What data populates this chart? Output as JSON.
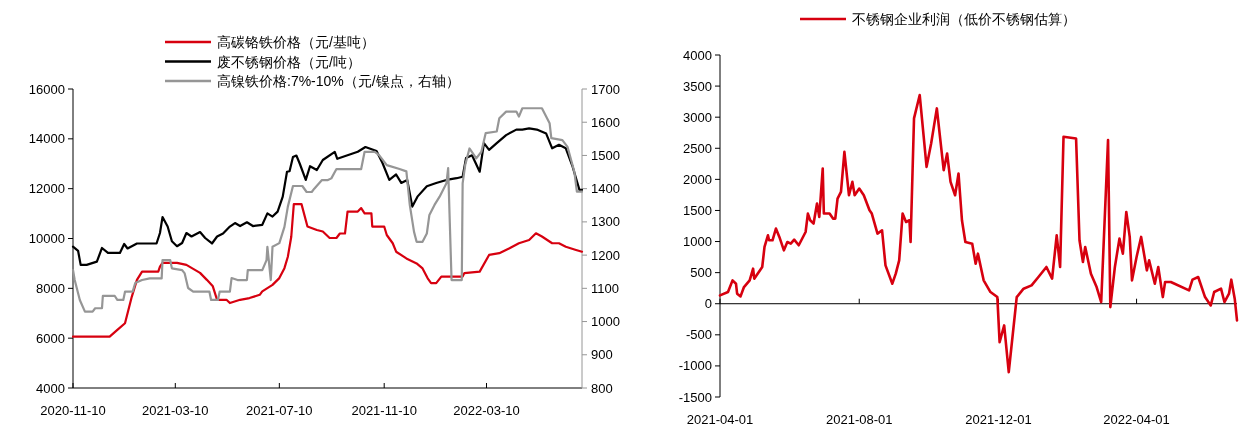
{
  "chart_data": [
    {
      "type": "line",
      "legend": "top",
      "grid": false,
      "marker": "none",
      "line_style": "solid",
      "xlim": [
        "2020-11-10",
        "2022-06-30"
      ],
      "xticks": [
        "2020-11-10",
        "2021-03-10",
        "2021-07-10",
        "2021-11-10",
        "2022-03-10"
      ],
      "ylim": [
        4000,
        16000
      ],
      "yticks": [
        4000,
        6000,
        8000,
        10000,
        12000,
        14000,
        16000
      ],
      "y2lim": [
        800,
        1700
      ],
      "y2ticks": [
        800,
        900,
        1000,
        1100,
        1200,
        1300,
        1400,
        1500,
        1600,
        1700
      ],
      "series": [
        {
          "name": "高碳铬铁价格（元/基吨）",
          "color": "#d7000f",
          "x": [
            "2020-11-10",
            "2020-12-23",
            "2021-01-01",
            "2021-01-10",
            "2021-01-18",
            "2021-01-24",
            "2021-01-30",
            "2021-02-18",
            "2021-02-20",
            "2021-02-23",
            "2021-03-12",
            "2021-03-23",
            "2021-03-31",
            "2021-04-08",
            "2021-04-16",
            "2021-04-23",
            "2021-04-28",
            "2021-05-09",
            "2021-05-13",
            "2021-05-25",
            "2021-06-05",
            "2021-06-17",
            "2021-06-20",
            "2021-07-02",
            "2021-07-10",
            "2021-07-16",
            "2021-07-20",
            "2021-07-24",
            "2021-07-27",
            "2021-08-05",
            "2021-08-12",
            "2021-08-23",
            "2021-08-30",
            "2021-09-07",
            "2021-09-15",
            "2021-09-19",
            "2021-09-25",
            "2021-09-28",
            "2021-10-10",
            "2021-10-14",
            "2021-10-18",
            "2021-10-26",
            "2021-10-27",
            "2021-11-10",
            "2021-11-13",
            "2021-11-20",
            "2021-11-24",
            "2021-12-06",
            "2021-12-18",
            "2021-12-25",
            "2021-12-31",
            "2022-01-04",
            "2022-01-10",
            "2022-01-16",
            "2022-02-10",
            "2022-02-12",
            "2022-03-02",
            "2022-03-13",
            "2022-03-25",
            "2022-04-06",
            "2022-04-17",
            "2022-04-29",
            "2022-05-07",
            "2022-05-14",
            "2022-05-26",
            "2022-06-03",
            "2022-06-11",
            "2022-06-23",
            "2022-06-30"
          ],
          "values": [
            6060,
            6060,
            6330,
            6600,
            7670,
            8340,
            8670,
            8670,
            8870,
            9020,
            9020,
            8940,
            8780,
            8620,
            8340,
            8080,
            7540,
            7540,
            7410,
            7540,
            7610,
            7740,
            7880,
            8140,
            8410,
            8810,
            9270,
            10070,
            11380,
            11380,
            10480,
            10340,
            10280,
            10020,
            10020,
            10200,
            10200,
            11080,
            11080,
            11220,
            11010,
            11010,
            10480,
            10480,
            10140,
            9810,
            9470,
            9200,
            9000,
            8800,
            8400,
            8210,
            8210,
            8470,
            8470,
            8610,
            8670,
            9340,
            9410,
            9610,
            9810,
            9940,
            10210,
            10080,
            9810,
            9810,
            9670,
            9540,
            9470
          ]
        },
        {
          "name": "废不锈钢价格（元/吨）",
          "color": "#000000",
          "x": [
            "2020-11-10",
            "2020-11-16",
            "2020-11-19",
            "2020-11-26",
            "2020-12-08",
            "2020-12-14",
            "2020-12-21",
            "2021-01-04",
            "2021-01-09",
            "2021-01-13",
            "2021-01-24",
            "2021-02-16",
            "2021-02-20",
            "2021-02-23",
            "2021-03-01",
            "2021-03-06",
            "2021-03-12",
            "2021-03-18",
            "2021-03-23",
            "2021-03-29",
            "2021-04-08",
            "2021-04-14",
            "2021-04-22",
            "2021-04-28",
            "2021-05-05",
            "2021-05-13",
            "2021-05-19",
            "2021-05-25",
            "2021-06-02",
            "2021-06-09",
            "2021-06-20",
            "2021-06-26",
            "2021-07-02",
            "2021-07-08",
            "2021-07-14",
            "2021-07-19",
            "2021-07-22",
            "2021-07-26",
            "2021-07-30",
            "2021-08-03",
            "2021-08-10",
            "2021-08-15",
            "2021-08-23",
            "2021-08-30",
            "2021-09-13",
            "2021-09-16",
            "2021-09-28",
            "2021-10-10",
            "2021-10-19",
            "2021-11-01",
            "2021-11-08",
            "2021-11-16",
            "2021-11-24",
            "2021-11-30",
            "2021-12-07",
            "2021-12-13",
            "2021-12-19",
            "2021-12-30",
            "2022-01-10",
            "2022-01-22",
            "2022-02-03",
            "2022-02-10",
            "2022-02-14",
            "2022-02-21",
            "2022-03-02",
            "2022-03-07",
            "2022-03-13",
            "2022-03-22",
            "2022-04-02",
            "2022-04-14",
            "2022-04-21",
            "2022-04-29",
            "2022-05-08",
            "2022-05-19",
            "2022-05-26",
            "2022-06-03",
            "2022-06-11",
            "2022-06-19",
            "2022-06-27",
            "2022-06-30"
          ],
          "values": [
            9670,
            9500,
            8940,
            8940,
            9070,
            9620,
            9420,
            9420,
            9780,
            9600,
            9800,
            9800,
            10220,
            10860,
            10480,
            9890,
            9690,
            9820,
            10220,
            10080,
            10260,
            10020,
            9800,
            10080,
            10200,
            10480,
            10620,
            10500,
            10650,
            10500,
            10550,
            11010,
            10880,
            11080,
            11680,
            12680,
            12700,
            13270,
            13330,
            13000,
            12350,
            12900,
            12750,
            13150,
            13480,
            13200,
            13340,
            13480,
            13670,
            13510,
            13030,
            12350,
            12570,
            12230,
            12350,
            11280,
            11680,
            12100,
            12230,
            12350,
            12420,
            12480,
            13230,
            13340,
            12680,
            13830,
            13560,
            13830,
            14150,
            14370,
            14370,
            14420,
            14370,
            14210,
            13620,
            13760,
            13620,
            12880,
            11950,
            11950
          ]
        },
        {
          "name": "高镍铁价格:7%-10%（元/镍点，右轴）",
          "color": "#969696",
          "axis": "y2",
          "x": [
            "2020-11-10",
            "2020-11-12",
            "2020-11-18",
            "2020-11-24",
            "2020-12-03",
            "2020-12-06",
            "2020-12-14",
            "2020-12-15",
            "2020-12-29",
            "2021-01-01",
            "2021-01-08",
            "2021-01-10",
            "2021-01-19",
            "2021-01-22",
            "2021-01-30",
            "2021-02-08",
            "2021-02-22",
            "2021-02-23",
            "2021-03-04",
            "2021-03-06",
            "2021-03-18",
            "2021-03-21",
            "2021-03-25",
            "2021-03-31",
            "2021-04-19",
            "2021-04-21",
            "2021-04-29",
            "2021-05-01",
            "2021-05-13",
            "2021-05-15",
            "2021-05-22",
            "2021-06-02",
            "2021-06-03",
            "2021-06-20",
            "2021-06-25",
            "2021-06-26",
            "2021-06-30",
            "2021-07-02",
            "2021-07-10",
            "2021-07-16",
            "2021-07-20",
            "2021-07-26",
            "2021-08-06",
            "2021-08-11",
            "2021-08-17",
            "2021-08-20",
            "2021-08-29",
            "2021-09-05",
            "2021-09-09",
            "2021-09-15",
            "2021-10-14",
            "2021-10-18",
            "2021-10-30",
            "2021-11-04",
            "2021-11-13",
            "2021-11-28",
            "2021-12-06",
            "2021-12-10",
            "2021-12-15",
            "2021-12-18",
            "2021-12-25",
            "2021-12-30",
            "2022-01-02",
            "2022-01-08",
            "2022-01-14",
            "2022-01-22",
            "2022-01-24",
            "2022-01-28",
            "2022-02-09",
            "2022-02-10",
            "2022-02-13",
            "2022-02-18",
            "2022-02-26",
            "2022-03-04",
            "2022-03-09",
            "2022-03-22",
            "2022-03-25",
            "2022-04-02",
            "2022-04-14",
            "2022-04-17",
            "2022-04-21",
            "2022-05-14",
            "2022-05-23",
            "2022-05-25",
            "2022-06-07",
            "2022-06-13",
            "2022-06-21",
            "2022-06-24",
            "2022-06-30"
          ],
          "values": [
            1155,
            1125,
            1065,
            1030,
            1030,
            1040,
            1040,
            1077,
            1077,
            1065,
            1065,
            1090,
            1090,
            1116,
            1125,
            1130,
            1130,
            1185,
            1185,
            1160,
            1155,
            1145,
            1101,
            1090,
            1090,
            1065,
            1065,
            1090,
            1090,
            1131,
            1125,
            1125,
            1155,
            1155,
            1185,
            1225,
            1125,
            1225,
            1236,
            1285,
            1346,
            1408,
            1408,
            1390,
            1390,
            1400,
            1426,
            1426,
            1431,
            1459,
            1459,
            1511,
            1511,
            1501,
            1471,
            1459,
            1452,
            1351,
            1270,
            1240,
            1240,
            1265,
            1321,
            1351,
            1376,
            1416,
            1462,
            1125,
            1125,
            1416,
            1471,
            1521,
            1491,
            1511,
            1567,
            1572,
            1612,
            1632,
            1632,
            1617,
            1642,
            1642,
            1597,
            1552,
            1546,
            1526,
            1451,
            1391,
            1391
          ]
        }
      ]
    },
    {
      "type": "line",
      "legend": "top",
      "marker": "none",
      "line_style": "solid",
      "xlim": [
        "2021-04-01",
        "2022-06-28"
      ],
      "xticks": [
        "2021-04-01",
        "2021-08-01",
        "2021-12-01",
        "2022-04-01"
      ],
      "ylim": [
        -1500,
        4000
      ],
      "yticks": [
        -1500,
        -1000,
        -500,
        0,
        500,
        1000,
        1500,
        2000,
        2500,
        3000,
        3500,
        4000
      ],
      "series": [
        {
          "name": "不锈钢企业利润（低价不锈钢估算）",
          "color": "#d7000f",
          "x": [
            "2021-04-01",
            "2021-04-08",
            "2021-04-12",
            "2021-04-15",
            "2021-04-16",
            "2021-04-19",
            "2021-04-22",
            "2021-04-27",
            "2021-04-30",
            "2021-05-01",
            "2021-05-08",
            "2021-05-10",
            "2021-05-13",
            "2021-05-14",
            "2021-05-17",
            "2021-05-20",
            "2021-05-23",
            "2021-05-27",
            "2021-05-30",
            "2021-06-02",
            "2021-06-05",
            "2021-06-09",
            "2021-06-15",
            "2021-06-17",
            "2021-06-19",
            "2021-06-22",
            "2021-06-25",
            "2021-06-27",
            "2021-06-30",
            "2021-07-01",
            "2021-07-06",
            "2021-07-09",
            "2021-07-11",
            "2021-07-13",
            "2021-07-16",
            "2021-07-19",
            "2021-07-23",
            "2021-07-26",
            "2021-07-28",
            "2021-08-01",
            "2021-08-05",
            "2021-08-10",
            "2021-08-12",
            "2021-08-17",
            "2021-08-21",
            "2021-08-24",
            "2021-08-30",
            "2021-09-02",
            "2021-09-05",
            "2021-09-08",
            "2021-09-11",
            "2021-09-14",
            "2021-09-15",
            "2021-09-18",
            "2021-09-23",
            "2021-09-29",
            "2021-10-03",
            "2021-10-08",
            "2021-10-14",
            "2021-10-17",
            "2021-10-20",
            "2021-10-24",
            "2021-10-27",
            "2021-10-30",
            "2021-11-02",
            "2021-11-08",
            "2021-11-11",
            "2021-11-13",
            "2021-11-18",
            "2021-11-24",
            "2021-11-30",
            "2021-12-02",
            "2021-12-06",
            "2021-12-10",
            "2021-12-17",
            "2021-12-23",
            "2021-12-30",
            "2022-01-05",
            "2022-01-12",
            "2022-01-17",
            "2022-01-21",
            "2022-01-24",
            "2022-01-27",
            "2022-02-07",
            "2022-02-10",
            "2022-02-13",
            "2022-02-15",
            "2022-02-20",
            "2022-02-25",
            "2022-03-01",
            "2022-03-07",
            "2022-03-09",
            "2022-03-13",
            "2022-03-17",
            "2022-03-20",
            "2022-03-23",
            "2022-03-26",
            "2022-03-28",
            "2022-04-01",
            "2022-04-05",
            "2022-04-10",
            "2022-04-12",
            "2022-04-17",
            "2022-04-20",
            "2022-04-24",
            "2022-04-26",
            "2022-05-01",
            "2022-05-17",
            "2022-05-20",
            "2022-05-25",
            "2022-05-31",
            "2022-06-05",
            "2022-06-08",
            "2022-06-14",
            "2022-06-17",
            "2022-06-21",
            "2022-06-23",
            "2022-06-26",
            "2022-06-28"
          ],
          "values": [
            134,
            188,
            376,
            322,
            161,
            118,
            268,
            376,
            564,
            403,
            591,
            913,
            1101,
            1020,
            1020,
            1208,
            1074,
            859,
            993,
            966,
            1031,
            940,
            1154,
            1450,
            1342,
            1289,
            1611,
            1396,
            2174,
            1450,
            1450,
            1369,
            1369,
            1691,
            1799,
            2443,
            1745,
            1960,
            1745,
            1852,
            1745,
            1503,
            1450,
            1128,
            1181,
            617,
            322,
            483,
            698,
            1450,
            1315,
            1342,
            993,
            2980,
            3356,
            2201,
            2577,
            3141,
            2148,
            2416,
            1960,
            1745,
            2094,
            1342,
            993,
            966,
            644,
            805,
            376,
            188,
            107,
            -617,
            -349,
            -1101,
            107,
            242,
            295,
            430,
            591,
            403,
            1101,
            591,
            2685,
            2658,
            1020,
            671,
            913,
            483,
            268,
            27,
            2631,
            -54,
            591,
            1047,
            805,
            1476,
            1074,
            376,
            752,
            1074,
            537,
            698,
            322,
            591,
            107,
            349,
            349,
            215,
            387,
            430,
            107,
            -27,
            188,
            242,
            27,
            161,
            387,
            81,
            -268
          ]
        }
      ]
    }
  ]
}
